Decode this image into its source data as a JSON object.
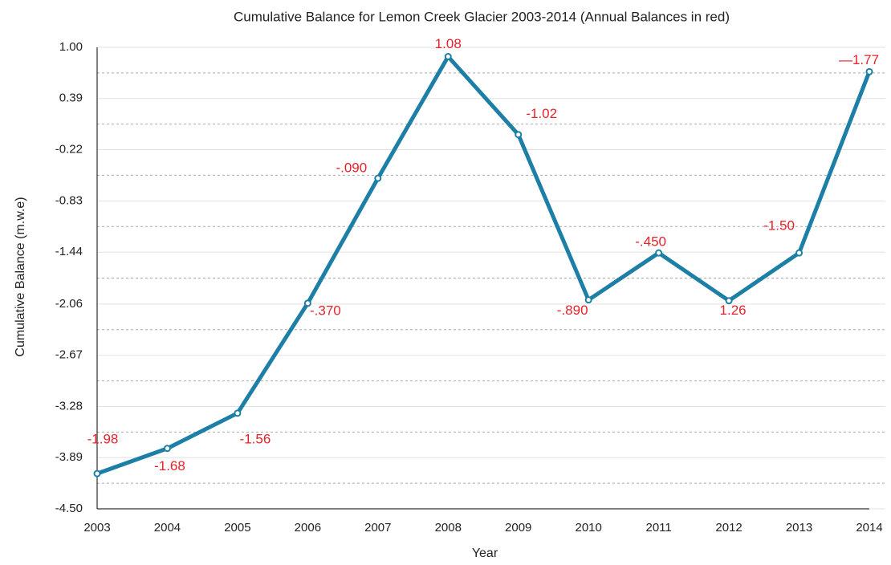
{
  "chart_data": {
    "type": "line",
    "title": "Cumulative Balance for Lemon Creek Glacier 2003-2014 (Annual Balances in red)",
    "xlabel": "Year",
    "ylabel": "Cumulative Balance (m.w.e)",
    "categories": [
      "2003",
      "2004",
      "2005",
      "2006",
      "2007",
      "2008",
      "2009",
      "2010",
      "2011",
      "2012",
      "2013",
      "2014"
    ],
    "series": [
      {
        "color": "#1d7fa6",
        "values": [
          -4.08,
          -3.78,
          -3.36,
          -2.05,
          -0.56,
          0.89,
          -0.04,
          -2.01,
          -1.45,
          -2.02,
          -1.45,
          0.71
        ]
      }
    ],
    "annotations": [
      "-1.98",
      "-1.68",
      "-1.56",
      "-.370",
      "-.090",
      "1.08",
      "-1.02",
      "-.890",
      "-.450",
      "1.26",
      "-1.50",
      "—1.77"
    ],
    "ylim": [
      -4.5,
      1.0
    ],
    "yticks": [
      {
        "value": 1.0,
        "label": "1.00"
      },
      0.39,
      -0.22,
      -0.83,
      -1.44,
      -2.06,
      -2.67,
      -3.28,
      -3.89,
      {
        "value": -4.5,
        "label": "-4.50"
      }
    ],
    "grid": true
  }
}
